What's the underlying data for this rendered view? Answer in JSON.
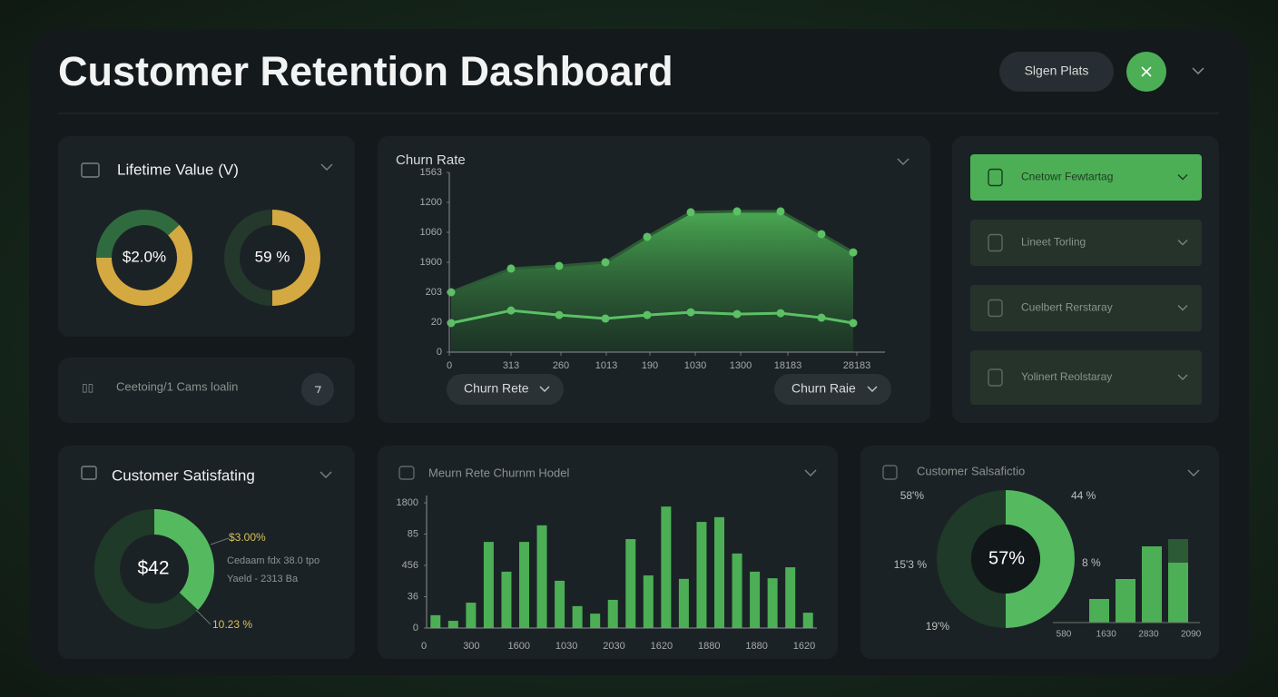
{
  "header": {
    "title": "Customer Retention Dashboard",
    "button": "Slgen Plats"
  },
  "lifetime_value": {
    "title": "Lifetime Value (V)",
    "donuts": [
      {
        "label": "$2.0%",
        "segments": [
          {
            "value": 38,
            "color": "#2f6b3f"
          },
          {
            "value": 62,
            "color": "#d4a941"
          }
        ]
      },
      {
        "label": "59 %",
        "segments": [
          {
            "value": 50,
            "color": "#d4a941"
          },
          {
            "value": 50,
            "color": "#24392c"
          }
        ]
      }
    ]
  },
  "campaign": {
    "label": "Ceetoing/1 Cams loalin"
  },
  "churn_rate": {
    "type": "line",
    "title": "Churn Rate",
    "x": [
      2,
      68,
      121,
      172,
      218,
      266,
      317,
      365,
      410,
      445
    ],
    "series": [
      {
        "color": "#2b5a34",
        "values": [
          200,
          279,
          288,
          300,
          385,
          467,
          470,
          470,
          394,
          333
        ]
      },
      {
        "color": "#5cc065",
        "values": [
          97,
          139,
          124,
          112,
          124,
          133,
          127,
          130,
          115,
          97
        ]
      }
    ],
    "xlim": [
      0,
      480
    ],
    "ylim": [
      0,
      600
    ],
    "xticks": [
      0,
      {
        "value": 68,
        "label": "313"
      },
      {
        "value": 123,
        "label": "260"
      },
      {
        "value": 173,
        "label": "1013"
      },
      {
        "value": 221,
        "label": "190"
      },
      {
        "value": 271,
        "label": "1030"
      },
      {
        "value": 321,
        "label": "1300"
      },
      {
        "value": 373,
        "label": "18183"
      },
      {
        "value": 449,
        "label": "28183"
      }
    ],
    "yticks": [
      0,
      {
        "value": 100,
        "label": "20"
      },
      {
        "value": 200,
        "label": "203"
      },
      {
        "value": 300,
        "label": "1900"
      },
      {
        "value": 400,
        "label": "1060"
      },
      {
        "value": 500,
        "label": "1200"
      },
      {
        "value": 600,
        "label": "1563"
      }
    ],
    "dropdowns": [
      "Churn Rete",
      "Churn Raie"
    ]
  },
  "menu": {
    "items": [
      "Cnetowr Fewtartag",
      "Lineet Torling",
      "Cuelbert Rerstaray",
      "Yolinert Reolstaray"
    ]
  },
  "satisfaction": {
    "title": "Customer Satisfating",
    "center": "$42",
    "segments": [
      {
        "value": 37,
        "color": "#55b960"
      },
      {
        "value": 63,
        "color": "#1f3a28"
      }
    ],
    "annotations": [
      "$3.00%",
      "Cedaam fdx 38.0 tpo",
      "Yaeld - 2313 Ba",
      "10.23 %"
    ]
  },
  "churn_model": {
    "type": "bar",
    "title": "Meurn Rete Churnm Hodel",
    "color": "#4caf55",
    "values": [
      41,
      23,
      81,
      275,
      180,
      275,
      328,
      151,
      70,
      46,
      90,
      284,
      168,
      388,
      157,
      339,
      354,
      238,
      180,
      159,
      194,
      49
    ],
    "ylim": [
      0,
      400
    ],
    "yticks": [
      0,
      {
        "value": 100,
        "label": "36"
      },
      {
        "value": 200,
        "label": "456"
      },
      {
        "value": 300,
        "label": "85"
      },
      {
        "value": 400,
        "label": "1800"
      }
    ],
    "xlabels": [
      "0",
      "300",
      "1600",
      "1030",
      "2030",
      "1620",
      "1880",
      "1880",
      "1620"
    ]
  },
  "satisfaction_2": {
    "title": "Customer Salsafictio",
    "center": "57%",
    "segments": [
      {
        "value": 50,
        "color": "#55b960"
      },
      {
        "value": 50,
        "color": "#1f3a28"
      }
    ],
    "labels": [
      "58'%",
      "44 %",
      "15'3 %",
      "8 %",
      "19'%"
    ],
    "bars": {
      "ylim": [
        0,
        100
      ],
      "series": [
        {
          "color": "#4caf55",
          "values": [
            26,
            48,
            84,
            66
          ]
        },
        {
          "color": "#2b5a34",
          "values": [
            null,
            null,
            null,
            26
          ]
        }
      ],
      "xlabels": [
        "580",
        "1630",
        "2830",
        "2090"
      ]
    }
  }
}
